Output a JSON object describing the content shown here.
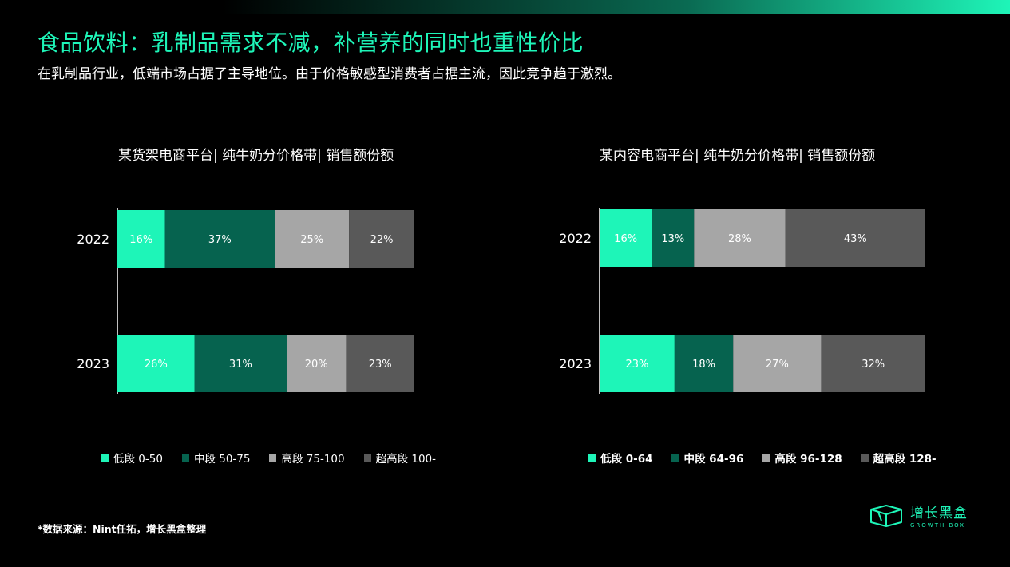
{
  "header": {
    "title": "食品饮料：乳制品需求不减，补营养的同时也重性价比",
    "subtitle": "在乳制品行业，低端市场占据了主导地位。由于价格敏感型消费者占据主流，因此竞争趋于激烈。"
  },
  "colors": {
    "accent": "#1ef5b8",
    "low": "#1ef5b8",
    "mid": "#06634f",
    "high": "#a6a6a6",
    "super": "#595959"
  },
  "chart_data": [
    {
      "type": "bar",
      "orientation": "horizontal-stacked-100",
      "title": "某货架电商平台| 纯牛奶分价格带| 销售额份额",
      "categories": [
        "2022",
        "2023"
      ],
      "series": [
        {
          "name": "低段 0-50",
          "values": [
            16,
            26
          ],
          "labels": [
            "16%",
            "26%"
          ]
        },
        {
          "name": "中段 50-75",
          "values": [
            37,
            31
          ],
          "labels": [
            "37%",
            "31%"
          ]
        },
        {
          "name": "高段 75-100",
          "values": [
            25,
            20
          ],
          "labels": [
            "25%",
            "20%"
          ]
        },
        {
          "name": "超高段 100-",
          "values": [
            22,
            23
          ],
          "labels": [
            "22%",
            "23%"
          ]
        }
      ],
      "xlim": [
        0,
        100
      ],
      "legend_position": "bottom"
    },
    {
      "type": "bar",
      "orientation": "horizontal-stacked-100",
      "title": "某内容电商平台| 纯牛奶分价格带| 销售额份额",
      "categories": [
        "2022",
        "2023"
      ],
      "series": [
        {
          "name": "低段 0-64",
          "values": [
            16,
            23
          ],
          "labels": [
            "16%",
            "23%"
          ]
        },
        {
          "name": "中段 64-96",
          "values": [
            13,
            18
          ],
          "labels": [
            "13%",
            "18%"
          ]
        },
        {
          "name": "高段 96-128",
          "values": [
            28,
            27
          ],
          "labels": [
            "28%",
            "27%"
          ]
        },
        {
          "name": "超高段 128-",
          "values": [
            43,
            32
          ],
          "labels": [
            "43%",
            "32%"
          ]
        }
      ],
      "xlim": [
        0,
        100
      ],
      "legend_position": "bottom"
    }
  ],
  "footnote": "*数据来源：Nint任拓，增长黑盒整理",
  "logo": {
    "name": "增长黑盒",
    "sub": "GROWTH BOX",
    "icon": "box-icon"
  }
}
